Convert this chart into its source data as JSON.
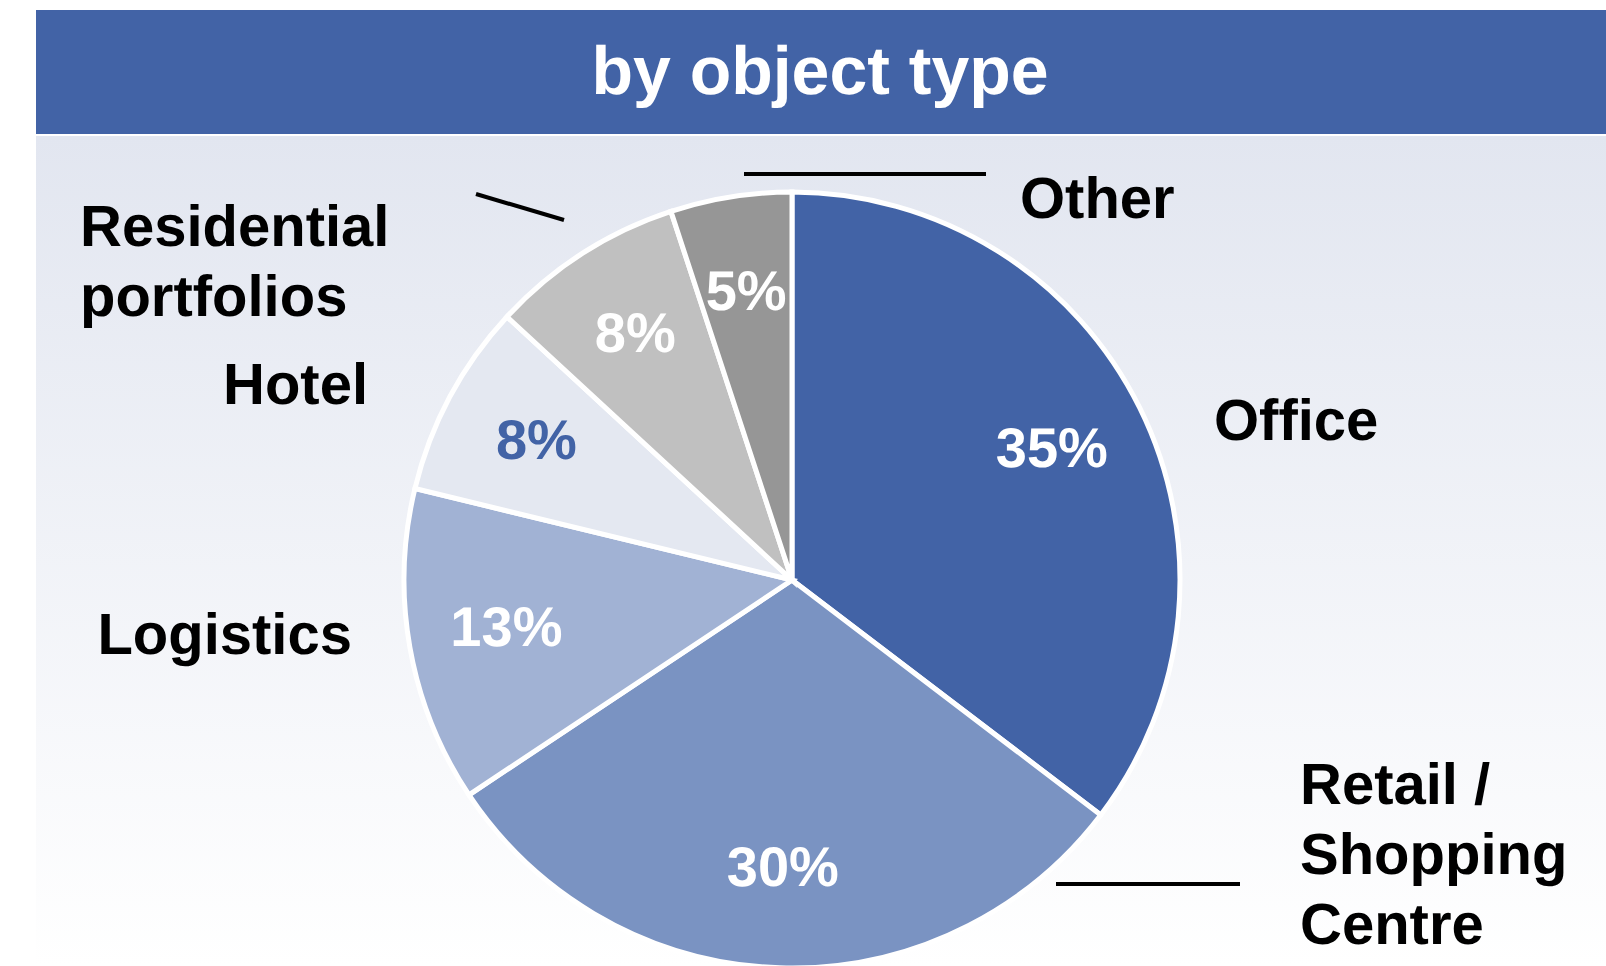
{
  "chart_data": {
    "type": "pie",
    "title": "by object type",
    "categories": [
      "Office",
      "Retail / Shopping Centre",
      "Logistics",
      "Hotel",
      "Residential portfolios",
      "Other"
    ],
    "values": [
      35,
      30,
      13,
      8,
      8,
      5
    ],
    "value_labels": [
      "35%",
      "30%",
      "13%",
      "8%",
      "8%",
      "5%"
    ],
    "colors": [
      "#4263a6",
      "#7a93c2",
      "#a1b2d4",
      "#e4e8f1",
      "#c0c0c0",
      "#969696"
    ]
  }
}
